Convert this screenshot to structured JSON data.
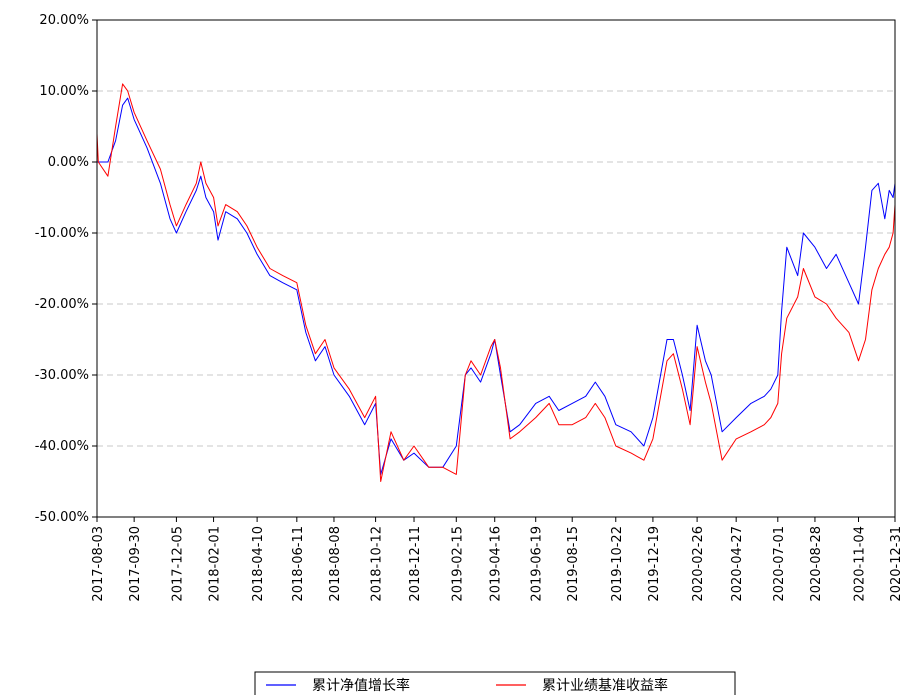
{
  "chart_data": {
    "type": "line",
    "title": "",
    "xlabel": "",
    "ylabel": "",
    "ylim": [
      -50,
      20
    ],
    "grid": "y-dashed",
    "legend_position": "bottom-center",
    "x_tick_labels": [
      "2017-08-03",
      "2017-09-30",
      "2017-12-05",
      "2018-02-01",
      "2018-04-10",
      "2018-06-11",
      "2018-08-08",
      "2018-10-12",
      "2018-12-11",
      "2019-02-15",
      "2019-04-16",
      "2019-06-19",
      "2019-08-15",
      "2019-10-22",
      "2019-12-19",
      "2020-02-26",
      "2020-04-27",
      "2020-07-01",
      "2020-08-28",
      "2020-11-04",
      "2020-12-31"
    ],
    "y_tick_labels": [
      "20.00%",
      "10.00%",
      "0.00%",
      "-10.00%",
      "-20.00%",
      "-30.00%",
      "-40.00%",
      "-50.00%"
    ],
    "y_ticks": [
      20,
      10,
      0,
      -10,
      -20,
      -30,
      -40,
      -50
    ],
    "series": [
      {
        "name": "累计净值增长率",
        "color": "#0000ff",
        "x": [
          "2017-08-03",
          "2017-08-20",
          "2017-09-01",
          "2017-09-12",
          "2017-09-20",
          "2017-09-30",
          "2017-10-20",
          "2017-11-10",
          "2017-11-25",
          "2017-12-05",
          "2017-12-20",
          "2018-01-05",
          "2018-01-12",
          "2018-01-20",
          "2018-02-01",
          "2018-02-08",
          "2018-02-20",
          "2018-03-10",
          "2018-03-25",
          "2018-04-10",
          "2018-04-30",
          "2018-05-20",
          "2018-06-11",
          "2018-06-25",
          "2018-07-10",
          "2018-07-25",
          "2018-08-08",
          "2018-09-01",
          "2018-09-25",
          "2018-10-12",
          "2018-10-20",
          "2018-11-05",
          "2018-11-25",
          "2018-12-11",
          "2019-01-03",
          "2019-01-25",
          "2019-02-15",
          "2019-03-01",
          "2019-03-10",
          "2019-03-25",
          "2019-04-10",
          "2019-04-16",
          "2019-04-25",
          "2019-05-10",
          "2019-05-25",
          "2019-06-19",
          "2019-07-10",
          "2019-07-25",
          "2019-08-15",
          "2019-09-05",
          "2019-09-20",
          "2019-10-05",
          "2019-10-22",
          "2019-11-15",
          "2019-12-05",
          "2019-12-19",
          "2020-01-10",
          "2020-01-20",
          "2020-02-03",
          "2020-02-15",
          "2020-02-26",
          "2020-03-10",
          "2020-03-19",
          "2020-04-05",
          "2020-04-27",
          "2020-05-20",
          "2020-06-10",
          "2020-06-20",
          "2020-07-01",
          "2020-07-07",
          "2020-07-15",
          "2020-08-01",
          "2020-08-10",
          "2020-08-28",
          "2020-09-15",
          "2020-09-30",
          "2020-10-20",
          "2020-11-04",
          "2020-11-15",
          "2020-11-25",
          "2020-12-05",
          "2020-12-15",
          "2020-12-22",
          "2020-12-28",
          "2020-12-31"
        ],
        "values": [
          0,
          0,
          3,
          8,
          9,
          6,
          2,
          -3,
          -8,
          -10,
          -7,
          -4,
          -2,
          -5,
          -7,
          -11,
          -7,
          -8,
          -10,
          -13,
          -16,
          -17,
          -18,
          -24,
          -28,
          -26,
          -30,
          -33,
          -37,
          -34,
          -44,
          -39,
          -42,
          -41,
          -43,
          -43,
          -40,
          -30,
          -29,
          -31,
          -27,
          -25,
          -30,
          -38,
          -37,
          -34,
          -33,
          -35,
          -34,
          -33,
          -31,
          -33,
          -37,
          -38,
          -40,
          -36,
          -25,
          -25,
          -30,
          -35,
          -23,
          -28,
          -30,
          -38,
          -36,
          -34,
          -33,
          -32,
          -30,
          -21,
          -12,
          -16,
          -10,
          -12,
          -15,
          -13,
          -17,
          -20,
          -12,
          -4,
          -3,
          -8,
          -4,
          -5,
          -3
        ]
      },
      {
        "name": "累计业绩基准收益率",
        "color": "#ff0000",
        "x": [
          "2017-08-03",
          "2017-08-05",
          "2017-08-20",
          "2017-09-01",
          "2017-09-12",
          "2017-09-20",
          "2017-09-30",
          "2017-10-20",
          "2017-11-10",
          "2017-11-25",
          "2017-12-05",
          "2017-12-20",
          "2018-01-05",
          "2018-01-12",
          "2018-01-20",
          "2018-02-01",
          "2018-02-08",
          "2018-02-20",
          "2018-03-10",
          "2018-03-25",
          "2018-04-10",
          "2018-04-30",
          "2018-05-20",
          "2018-06-11",
          "2018-06-25",
          "2018-07-10",
          "2018-07-25",
          "2018-08-08",
          "2018-09-01",
          "2018-09-25",
          "2018-10-12",
          "2018-10-20",
          "2018-11-05",
          "2018-11-25",
          "2018-12-11",
          "2019-01-03",
          "2019-01-25",
          "2019-02-15",
          "2019-03-01",
          "2019-03-10",
          "2019-03-25",
          "2019-04-10",
          "2019-04-16",
          "2019-04-25",
          "2019-05-10",
          "2019-05-25",
          "2019-06-19",
          "2019-07-10",
          "2019-07-25",
          "2019-08-15",
          "2019-09-05",
          "2019-09-20",
          "2019-10-05",
          "2019-10-22",
          "2019-11-15",
          "2019-12-05",
          "2019-12-19",
          "2020-01-10",
          "2020-01-20",
          "2020-02-03",
          "2020-02-15",
          "2020-02-26",
          "2020-03-10",
          "2020-03-19",
          "2020-04-05",
          "2020-04-27",
          "2020-05-20",
          "2020-06-10",
          "2020-06-20",
          "2020-07-01",
          "2020-07-07",
          "2020-07-15",
          "2020-08-01",
          "2020-08-10",
          "2020-08-28",
          "2020-09-15",
          "2020-09-30",
          "2020-10-20",
          "2020-11-04",
          "2020-11-15",
          "2020-11-25",
          "2020-12-05",
          "2020-12-15",
          "2020-12-22",
          "2020-12-28",
          "2020-12-31"
        ],
        "values": [
          4,
          0,
          -2,
          5,
          11,
          10,
          7,
          3,
          -1,
          -6,
          -9,
          -6,
          -3,
          0,
          -3,
          -5,
          -9,
          -6,
          -7,
          -9,
          -12,
          -15,
          -16,
          -17,
          -23,
          -27,
          -25,
          -29,
          -32,
          -36,
          -33,
          -45,
          -38,
          -42,
          -40,
          -43,
          -43,
          -44,
          -30,
          -28,
          -30,
          -26,
          -25,
          -29,
          -39,
          -38,
          -36,
          -34,
          -37,
          -37,
          -36,
          -34,
          -36,
          -40,
          -41,
          -42,
          -39,
          -28,
          -27,
          -32,
          -37,
          -26,
          -31,
          -34,
          -42,
          -39,
          -38,
          -37,
          -36,
          -34,
          -27,
          -22,
          -19,
          -15,
          -19,
          -20,
          -22,
          -24,
          -28,
          -25,
          -18,
          -15,
          -13,
          -12,
          -10,
          -6
        ]
      }
    ]
  }
}
